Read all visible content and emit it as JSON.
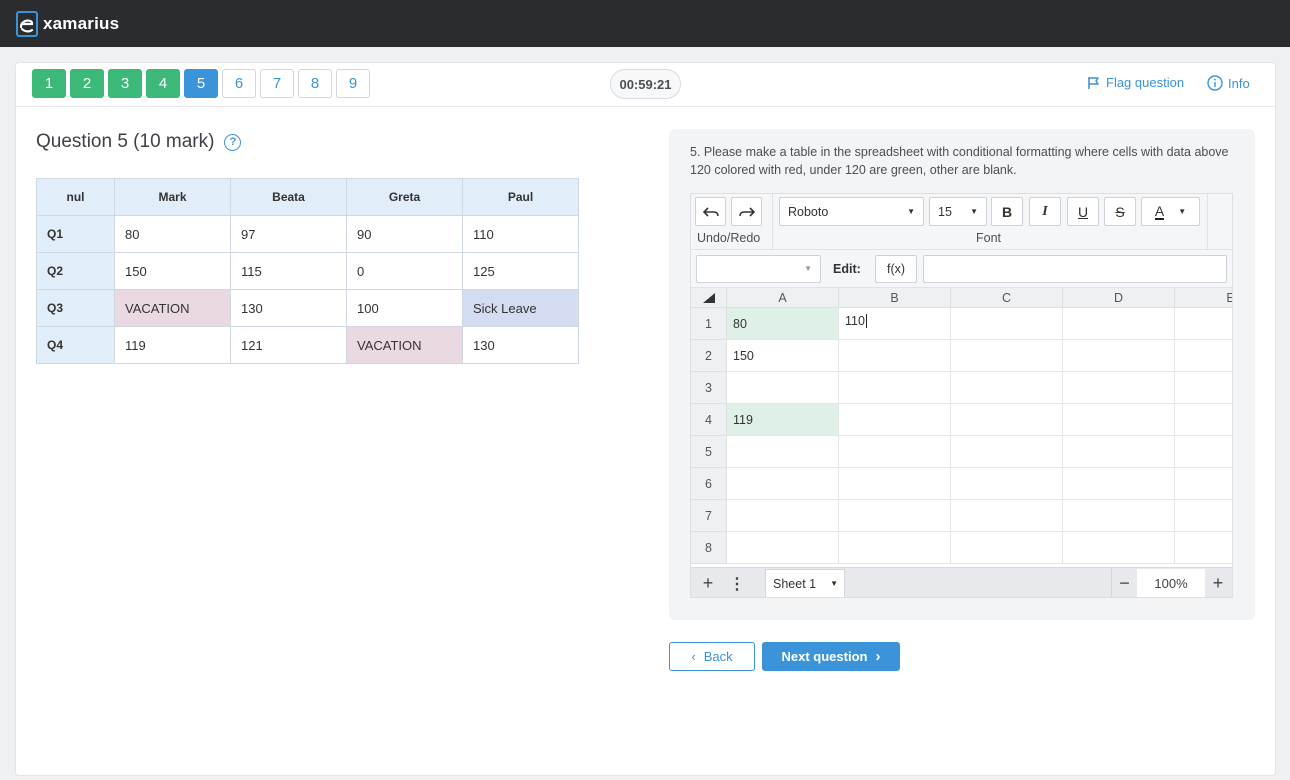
{
  "app": {
    "name": "xamarius"
  },
  "header": {
    "questions": [
      {
        "label": "1",
        "state": "done"
      },
      {
        "label": "2",
        "state": "done"
      },
      {
        "label": "3",
        "state": "done"
      },
      {
        "label": "4",
        "state": "done"
      },
      {
        "label": "5",
        "state": "current"
      },
      {
        "label": "6",
        "state": "todo"
      },
      {
        "label": "7",
        "state": "todo"
      },
      {
        "label": "8",
        "state": "todo"
      },
      {
        "label": "9",
        "state": "todo"
      }
    ],
    "timer": "00:59:21",
    "flag_label": "Flag question",
    "info_label": "Info"
  },
  "question": {
    "title": "Question 5 (10 mark)",
    "table": {
      "headers": [
        "nul",
        "Mark",
        "Beata",
        "Greta",
        "Paul"
      ],
      "rows": [
        [
          "Q1",
          "80",
          "97",
          "90",
          "110"
        ],
        [
          "Q2",
          "150",
          "115",
          "0",
          "125"
        ],
        [
          "Q3",
          "VACATION",
          "130",
          "100",
          "Sick Leave"
        ],
        [
          "Q4",
          "119",
          "121",
          "VACATION",
          "130"
        ]
      ]
    },
    "instructions": "5. Please make a table in the spreadsheet with conditional formatting where cells with data above 120 colored with red, under 120 are green, other are blank."
  },
  "spreadsheet": {
    "toolbar": {
      "undo_redo_label": "Undo/Redo",
      "font_name": "Roboto",
      "font_size": "15",
      "font_label": "Font",
      "bold": "B",
      "italic": "I",
      "underline": "U",
      "strike": "S",
      "color": "A"
    },
    "formula": {
      "edit_label": "Edit:",
      "fx_label": "f(x)",
      "namebox_value": "",
      "formula_value": ""
    },
    "columns": [
      "A",
      "B",
      "C",
      "D",
      "E"
    ],
    "rows": [
      "1",
      "2",
      "3",
      "4",
      "5",
      "6",
      "7",
      "8"
    ],
    "cells": {
      "A1": "80",
      "B1": "110",
      "A2": "150",
      "A4": "119"
    },
    "sheet_name": "Sheet 1",
    "zoom": "100%"
  },
  "nav": {
    "back_label": "Back",
    "next_label": "Next question"
  },
  "colors": {
    "accent": "#3b94d9",
    "done": "#3cb878",
    "cell_green": "#dff1e6",
    "cell_pink": "#ead9e2",
    "cell_blue": "#d4dcf2"
  }
}
